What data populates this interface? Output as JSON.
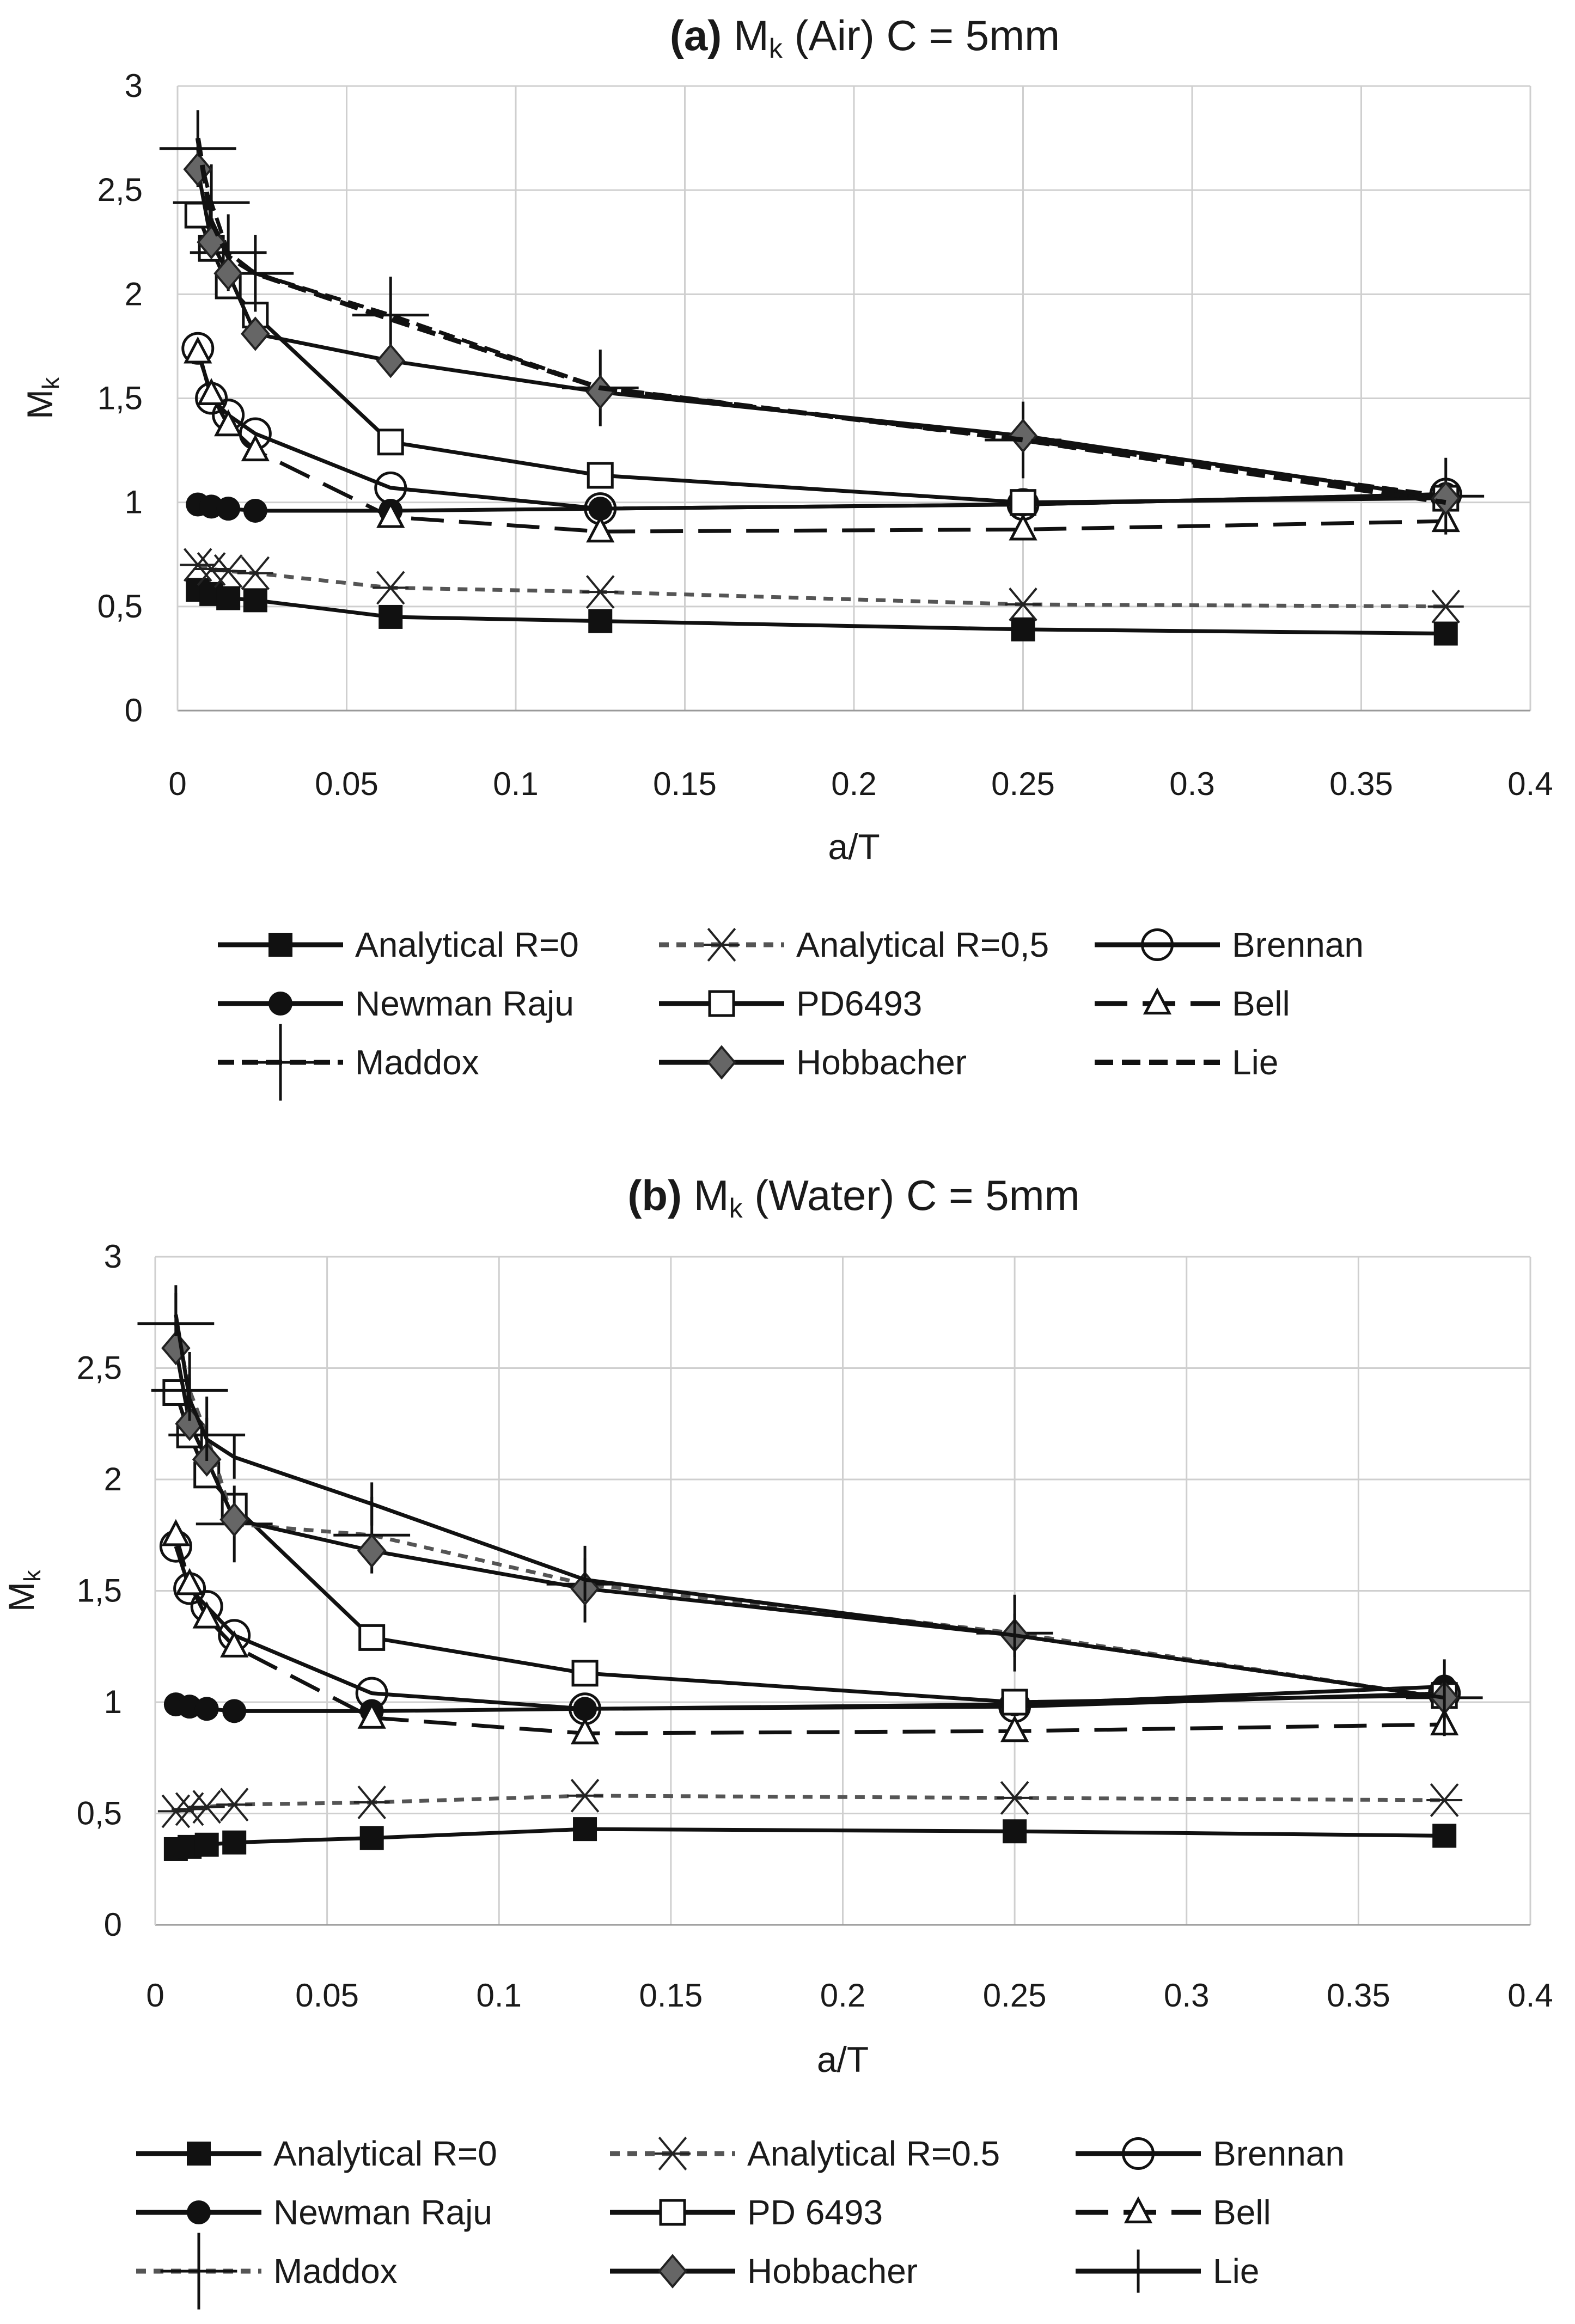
{
  "chart_data": [
    {
      "type": "line",
      "title_prefix": "(a)",
      "title_main": "M",
      "title_sub": "k",
      "title_rest": " (Air)   C = 5mm",
      "xlabel": "a/T",
      "ylabel_main": "M",
      "ylabel_sub": "k",
      "xlim": [
        0,
        0.4
      ],
      "ylim": [
        0,
        3
      ],
      "xticks": [
        "0",
        "0.05",
        "0.1",
        "0.15",
        "0.2",
        "0.25",
        "0.3",
        "0.35",
        "0.4"
      ],
      "yticks": [
        "0",
        "0,5",
        "1",
        "1,5",
        "2",
        "2,5",
        "3"
      ],
      "grid": true,
      "legend_position": "bottom",
      "series": [
        {
          "name": "Analytical R=0",
          "marker": "square-filled",
          "dash": "solid",
          "x": [
            0.006,
            0.01,
            0.015,
            0.023,
            0.063,
            0.125,
            0.25,
            0.375
          ],
          "y": [
            0.58,
            0.56,
            0.54,
            0.53,
            0.45,
            0.43,
            0.39,
            0.37
          ]
        },
        {
          "name": "Analytical R=0,5",
          "marker": "asterisk",
          "dash": "dash-light",
          "x": [
            0.006,
            0.01,
            0.015,
            0.023,
            0.063,
            0.125,
            0.25,
            0.375
          ],
          "y": [
            0.7,
            0.68,
            0.67,
            0.66,
            0.59,
            0.57,
            0.51,
            0.5
          ]
        },
        {
          "name": "Brennan",
          "marker": "circle-open",
          "dash": "solid",
          "x": [
            0.006,
            0.01,
            0.015,
            0.023,
            0.063,
            0.125,
            0.25,
            0.375
          ],
          "y": [
            1.74,
            1.5,
            1.42,
            1.33,
            1.07,
            0.97,
            0.99,
            1.04
          ]
        },
        {
          "name": "Newman Raju",
          "marker": "circle-filled",
          "dash": "solid",
          "x": [
            0.006,
            0.01,
            0.015,
            0.023,
            0.063,
            0.125,
            0.25,
            0.375
          ],
          "y": [
            0.99,
            0.98,
            0.97,
            0.96,
            0.96,
            0.97,
            0.99,
            1.04
          ]
        },
        {
          "name": "PD6493",
          "marker": "square-open",
          "dash": "solid",
          "x": [
            0.006,
            0.01,
            0.015,
            0.023,
            0.063,
            0.125,
            0.25,
            0.375
          ],
          "y": [
            2.38,
            2.22,
            2.04,
            1.9,
            1.29,
            1.13,
            1.0,
            1.02
          ]
        },
        {
          "name": "Bell",
          "marker": "triangle-open",
          "dash": "long-dash",
          "x": [
            0.006,
            0.01,
            0.015,
            0.023,
            0.063,
            0.125,
            0.25,
            0.375
          ],
          "y": [
            1.72,
            1.52,
            1.37,
            1.25,
            0.93,
            0.86,
            0.87,
            0.91
          ]
        },
        {
          "name": "Maddox",
          "marker": "plus",
          "dash": "dash",
          "x": [
            0.006,
            0.01,
            0.015,
            0.023,
            0.063,
            0.125,
            0.25,
            0.375
          ],
          "y": [
            2.7,
            2.44,
            2.2,
            2.1,
            1.9,
            1.55,
            1.3,
            1.03
          ]
        },
        {
          "name": "Hobbacher",
          "marker": "diamond-filled",
          "dash": "solid",
          "x": [
            0.006,
            0.01,
            0.015,
            0.023,
            0.063,
            0.125,
            0.25,
            0.375
          ],
          "y": [
            2.6,
            2.25,
            2.1,
            1.81,
            1.68,
            1.53,
            1.32,
            1.02
          ]
        },
        {
          "name": "Lie",
          "marker": "none",
          "dash": "dash-heavy",
          "x": [
            0.006,
            0.01,
            0.015,
            0.023,
            0.063,
            0.125,
            0.25,
            0.375
          ],
          "y": [
            2.75,
            2.35,
            2.18,
            2.1,
            1.88,
            1.55,
            1.3,
            1.0
          ]
        }
      ]
    },
    {
      "type": "line",
      "title_prefix": "(b)",
      "title_main": "M",
      "title_sub": "k",
      "title_rest": " (Water)   C = 5mm",
      "xlabel": "a/T",
      "ylabel_main": "M",
      "ylabel_sub": "k",
      "xlim": [
        0,
        0.4
      ],
      "ylim": [
        0,
        3
      ],
      "xticks": [
        "0",
        "0.05",
        "0.1",
        "0.15",
        "0.2",
        "0.25",
        "0.3",
        "0.35",
        "0.4"
      ],
      "yticks": [
        "0",
        "0,5",
        "1",
        "1,5",
        "2",
        "2,5",
        "3"
      ],
      "grid": true,
      "legend_position": "bottom",
      "series": [
        {
          "name": "Analytical R=0",
          "marker": "square-filled",
          "dash": "solid",
          "x": [
            0.006,
            0.01,
            0.015,
            0.023,
            0.063,
            0.125,
            0.25,
            0.375
          ],
          "y": [
            0.34,
            0.35,
            0.36,
            0.37,
            0.39,
            0.43,
            0.42,
            0.4
          ]
        },
        {
          "name": "Analytical R=0.5",
          "marker": "asterisk",
          "dash": "dash-light",
          "x": [
            0.006,
            0.01,
            0.015,
            0.023,
            0.063,
            0.125,
            0.25,
            0.375
          ],
          "y": [
            0.51,
            0.52,
            0.53,
            0.54,
            0.55,
            0.58,
            0.57,
            0.56
          ]
        },
        {
          "name": "Brennan",
          "marker": "circle-open",
          "dash": "solid",
          "x": [
            0.006,
            0.01,
            0.015,
            0.023,
            0.063,
            0.125,
            0.25,
            0.375
          ],
          "y": [
            1.7,
            1.51,
            1.43,
            1.3,
            1.04,
            0.97,
            0.98,
            1.04
          ]
        },
        {
          "name": "Newman Raju",
          "marker": "circle-filled",
          "dash": "solid",
          "x": [
            0.006,
            0.01,
            0.015,
            0.023,
            0.063,
            0.125,
            0.25,
            0.375
          ],
          "y": [
            0.99,
            0.98,
            0.97,
            0.96,
            0.96,
            0.97,
            0.99,
            1.07
          ]
        },
        {
          "name": "PD 6493",
          "marker": "square-open",
          "dash": "solid",
          "x": [
            0.006,
            0.01,
            0.015,
            0.023,
            0.063,
            0.125,
            0.25,
            0.375
          ],
          "y": [
            2.39,
            2.2,
            2.02,
            1.88,
            1.29,
            1.13,
            1.0,
            1.03
          ]
        },
        {
          "name": "Bell",
          "marker": "triangle-open",
          "dash": "long-dash",
          "x": [
            0.006,
            0.01,
            0.015,
            0.023,
            0.063,
            0.125,
            0.25,
            0.375
          ],
          "y": [
            1.75,
            1.53,
            1.38,
            1.25,
            0.93,
            0.86,
            0.87,
            0.9
          ]
        },
        {
          "name": "Maddox",
          "marker": "plus",
          "dash": "dash-light",
          "x": [
            0.006,
            0.01,
            0.015,
            0.023,
            0.063,
            0.125,
            0.25,
            0.375
          ],
          "y": [
            2.7,
            2.4,
            2.2,
            1.8,
            1.75,
            1.53,
            1.31,
            1.02
          ]
        },
        {
          "name": "Hobbacher",
          "marker": "diamond-filled",
          "dash": "solid",
          "x": [
            0.006,
            0.01,
            0.015,
            0.023,
            0.063,
            0.125,
            0.25,
            0.375
          ],
          "y": [
            2.59,
            2.25,
            2.09,
            1.82,
            1.68,
            1.51,
            1.3,
            1.02
          ]
        },
        {
          "name": "Lie",
          "marker": "tick",
          "dash": "solid",
          "x": [
            0.006,
            0.01,
            0.015,
            0.023,
            0.063,
            0.125,
            0.25,
            0.375
          ],
          "y": [
            2.74,
            2.36,
            2.18,
            2.1,
            1.89,
            1.55,
            1.3,
            1.02
          ]
        }
      ]
    }
  ]
}
